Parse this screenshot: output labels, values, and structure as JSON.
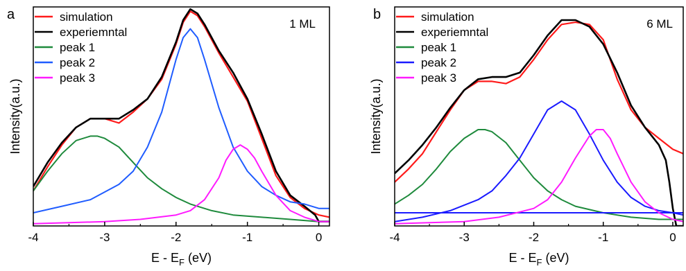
{
  "chart_data": [
    {
      "type": "line",
      "panel_label": "a",
      "annotation": "1 ML",
      "xlabel": {
        "main": "E - E",
        "sub": "F",
        "unit": " (eV)"
      },
      "ylabel": "Intensity(a.u.)",
      "xlim": [
        -4,
        0.15
      ],
      "ylim": [
        0,
        1
      ],
      "xticks": [
        -4,
        -3,
        -2,
        -1,
        0
      ],
      "legend_position": "top-left",
      "series": [
        {
          "name": "simulation",
          "color": "#ff1a1a",
          "width": 2.2,
          "x": [
            -4.0,
            -3.8,
            -3.6,
            -3.4,
            -3.2,
            -3.0,
            -2.8,
            -2.6,
            -2.4,
            -2.2,
            -2.0,
            -1.9,
            -1.8,
            -1.7,
            -1.6,
            -1.4,
            -1.2,
            -1.0,
            -0.8,
            -0.6,
            -0.4,
            -0.2,
            0.0,
            0.15
          ],
          "y": [
            0.16,
            0.27,
            0.37,
            0.45,
            0.49,
            0.49,
            0.47,
            0.52,
            0.58,
            0.67,
            0.83,
            0.93,
            0.98,
            0.96,
            0.91,
            0.79,
            0.68,
            0.57,
            0.4,
            0.23,
            0.13,
            0.08,
            0.05,
            0.04
          ]
        },
        {
          "name": "experiemntal",
          "color": "#000000",
          "width": 2.6,
          "x": [
            -4.0,
            -3.8,
            -3.6,
            -3.4,
            -3.2,
            -3.0,
            -2.8,
            -2.6,
            -2.4,
            -2.2,
            -2.0,
            -1.9,
            -1.8,
            -1.7,
            -1.6,
            -1.4,
            -1.2,
            -1.0,
            -0.8,
            -0.6,
            -0.4,
            -0.2,
            -0.05,
            0.0,
            0.15
          ],
          "y": [
            0.18,
            0.29,
            0.38,
            0.45,
            0.49,
            0.49,
            0.49,
            0.53,
            0.58,
            0.68,
            0.84,
            0.94,
            0.99,
            0.97,
            0.92,
            0.8,
            0.7,
            0.58,
            0.42,
            0.25,
            0.14,
            0.09,
            0.05,
            0.02,
            0.02
          ]
        },
        {
          "name": "peak 1",
          "color": "#1e8a3c",
          "width": 2.0,
          "x": [
            -4.0,
            -3.8,
            -3.6,
            -3.4,
            -3.2,
            -3.1,
            -3.0,
            -2.8,
            -2.6,
            -2.4,
            -2.2,
            -2.0,
            -1.8,
            -1.5,
            -1.2,
            -0.8,
            -0.4,
            0.0,
            0.15
          ],
          "y": [
            0.16,
            0.25,
            0.33,
            0.39,
            0.41,
            0.41,
            0.4,
            0.36,
            0.29,
            0.22,
            0.17,
            0.13,
            0.1,
            0.07,
            0.05,
            0.04,
            0.03,
            0.02,
            0.02
          ]
        },
        {
          "name": "peak 2",
          "color": "#1f5cff",
          "width": 2.0,
          "x": [
            -4.0,
            -3.6,
            -3.2,
            -2.8,
            -2.6,
            -2.4,
            -2.2,
            -2.0,
            -1.9,
            -1.8,
            -1.7,
            -1.6,
            -1.4,
            -1.2,
            -1.0,
            -0.8,
            -0.6,
            -0.4,
            -0.2,
            0.0,
            0.15
          ],
          "y": [
            0.06,
            0.09,
            0.12,
            0.19,
            0.25,
            0.36,
            0.52,
            0.76,
            0.86,
            0.9,
            0.86,
            0.76,
            0.54,
            0.36,
            0.25,
            0.18,
            0.14,
            0.11,
            0.1,
            0.08,
            0.08
          ]
        },
        {
          "name": "peak 3",
          "color": "#ff1aff",
          "width": 2.0,
          "x": [
            -4.0,
            -3.5,
            -3.0,
            -2.5,
            -2.0,
            -1.8,
            -1.6,
            -1.4,
            -1.3,
            -1.2,
            -1.1,
            -1.0,
            -0.9,
            -0.8,
            -0.6,
            -0.4,
            -0.2,
            0.0,
            0.15
          ],
          "y": [
            0.01,
            0.015,
            0.02,
            0.03,
            0.05,
            0.07,
            0.12,
            0.22,
            0.3,
            0.35,
            0.37,
            0.35,
            0.31,
            0.25,
            0.14,
            0.07,
            0.04,
            0.02,
            0.02
          ]
        }
      ]
    },
    {
      "type": "line",
      "panel_label": "b",
      "annotation": "6 ML",
      "xlabel": {
        "main": "E - E",
        "sub": "F",
        "unit": " (eV)"
      },
      "ylabel": "Intensity(a.u.)",
      "xlim": [
        -4,
        0.15
      ],
      "ylim": [
        0,
        1
      ],
      "xticks": [
        -4,
        -3,
        -2,
        -1,
        0
      ],
      "legend_position": "top-left",
      "series": [
        {
          "name": "simulation",
          "color": "#ff1a1a",
          "width": 2.2,
          "x": [
            -4.0,
            -3.8,
            -3.6,
            -3.4,
            -3.2,
            -3.0,
            -2.8,
            -2.6,
            -2.4,
            -2.2,
            -2.0,
            -1.8,
            -1.6,
            -1.4,
            -1.2,
            -1.0,
            -0.8,
            -0.6,
            -0.4,
            -0.2,
            0.0,
            0.15
          ],
          "y": [
            0.2,
            0.26,
            0.33,
            0.43,
            0.53,
            0.62,
            0.66,
            0.66,
            0.65,
            0.68,
            0.76,
            0.85,
            0.92,
            0.93,
            0.92,
            0.85,
            0.67,
            0.53,
            0.45,
            0.4,
            0.35,
            0.33
          ]
        },
        {
          "name": "experiemntal",
          "color": "#000000",
          "width": 2.6,
          "x": [
            -4.0,
            -3.8,
            -3.6,
            -3.4,
            -3.2,
            -3.0,
            -2.8,
            -2.6,
            -2.4,
            -2.2,
            -2.0,
            -1.8,
            -1.6,
            -1.4,
            -1.2,
            -1.0,
            -0.8,
            -0.6,
            -0.4,
            -0.2,
            -0.1,
            -0.05,
            0.0,
            0.05,
            0.15
          ],
          "y": [
            0.24,
            0.3,
            0.37,
            0.45,
            0.54,
            0.62,
            0.67,
            0.68,
            0.68,
            0.7,
            0.78,
            0.87,
            0.94,
            0.94,
            0.91,
            0.83,
            0.7,
            0.55,
            0.45,
            0.37,
            0.3,
            0.2,
            0.08,
            0.0,
            0.0
          ]
        },
        {
          "name": "peak 1",
          "color": "#1e8a3c",
          "width": 2.0,
          "x": [
            -4.0,
            -3.8,
            -3.6,
            -3.4,
            -3.2,
            -3.0,
            -2.8,
            -2.7,
            -2.6,
            -2.4,
            -2.2,
            -2.0,
            -1.8,
            -1.6,
            -1.4,
            -1.0,
            -0.6,
            -0.2,
            0.0,
            0.15
          ],
          "y": [
            0.1,
            0.14,
            0.19,
            0.26,
            0.34,
            0.4,
            0.44,
            0.44,
            0.43,
            0.38,
            0.3,
            0.22,
            0.16,
            0.12,
            0.09,
            0.06,
            0.04,
            0.03,
            0.03,
            0.03
          ]
        },
        {
          "name": "peak 2",
          "color": "#1a1aff",
          "width": 2.0,
          "x": [
            -4.0,
            -3.6,
            -3.2,
            -2.8,
            -2.6,
            -2.4,
            -2.2,
            -2.0,
            -1.8,
            -1.6,
            -1.4,
            -1.2,
            -1.0,
            -0.8,
            -0.6,
            -0.4,
            -0.2,
            0.0,
            0.15
          ],
          "y": [
            0.02,
            0.04,
            0.07,
            0.12,
            0.16,
            0.23,
            0.31,
            0.42,
            0.53,
            0.57,
            0.53,
            0.42,
            0.3,
            0.2,
            0.13,
            0.09,
            0.07,
            0.06,
            0.05
          ]
        },
        {
          "name": "baseline",
          "color": "#1a1aff",
          "width": 2.0,
          "x": [
            -4.0,
            0.15
          ],
          "y": [
            0.06,
            0.06
          ]
        },
        {
          "name": "peak 3",
          "color": "#ff1aff",
          "width": 2.0,
          "x": [
            -4.0,
            -3.5,
            -3.0,
            -2.5,
            -2.0,
            -1.8,
            -1.6,
            -1.4,
            -1.2,
            -1.1,
            -1.0,
            -0.9,
            -0.8,
            -0.6,
            -0.4,
            -0.2,
            0.0,
            0.15
          ],
          "y": [
            0.01,
            0.015,
            0.02,
            0.04,
            0.08,
            0.12,
            0.2,
            0.31,
            0.41,
            0.44,
            0.44,
            0.4,
            0.33,
            0.2,
            0.11,
            0.06,
            0.03,
            0.02
          ]
        }
      ]
    }
  ]
}
